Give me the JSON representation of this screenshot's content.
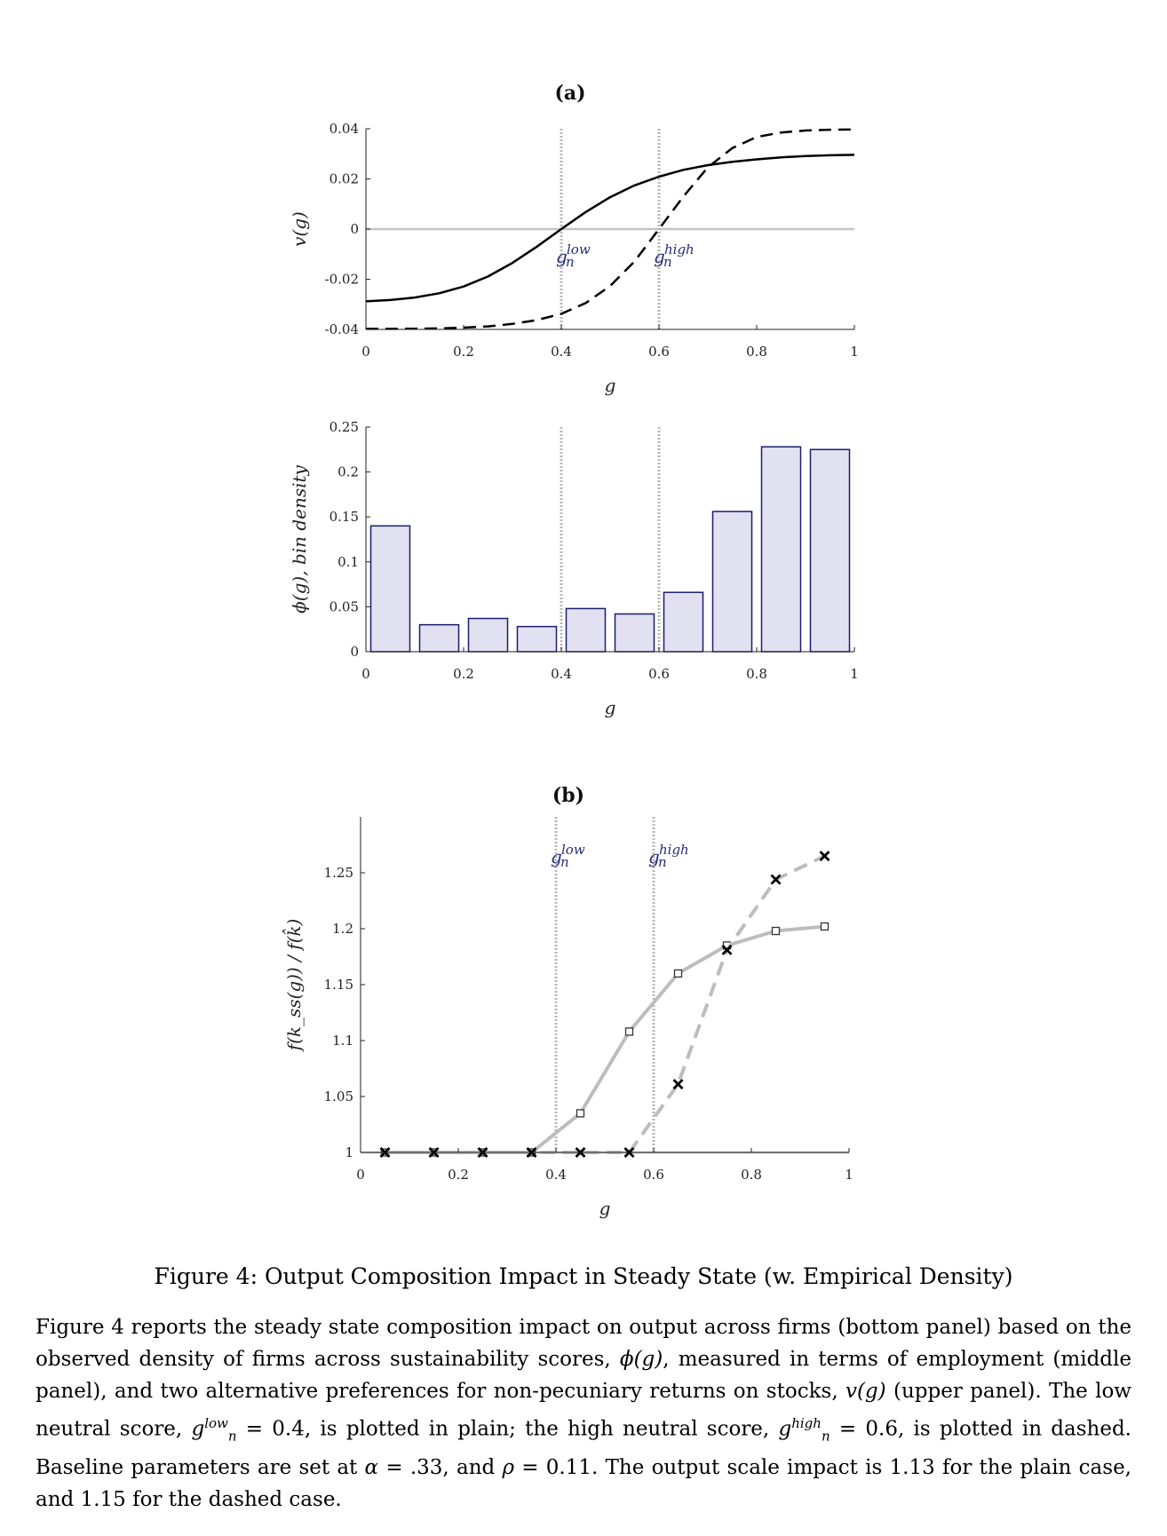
{
  "figure": {
    "panel_a_label": "(a)",
    "panel_b_label": "(b)",
    "ref_low_main": "g",
    "ref_low_sub": "n",
    "ref_low_sup": "low",
    "ref_high_main": "g",
    "ref_high_sub": "n",
    "ref_high_sup": "high"
  },
  "caption": {
    "title": "Figure 4: Output Composition Impact in Steady State (w. Empirical Density)",
    "p1": "Figure 4 reports the steady state composition impact on output across firms (bottom panel) based on the observed density of firms across sustainability scores, ",
    "phi": "ϕ(g)",
    "p2": ", measured in terms of employment (middle panel), and two alternative preferences for non-pecuniary returns on stocks, ",
    "vg": "v(g)",
    "p3": " (upper panel). The low neutral score, ",
    "glow": "g",
    "glow_sup": "low",
    "glow_sub": "n",
    "p4": " = 0.4, is plotted in plain; the high neutral score, ",
    "ghigh": "g",
    "ghigh_sup": "high",
    "ghigh_sub": "n",
    "p5": " = 0.6, is plotted in dashed. Baseline parameters are set at ",
    "alpha": "α",
    "p6": " = .33, and ",
    "rho": "ρ",
    "p7": " = 0.11. The output scale impact is 1.13 for the plain case, and 1.15 for the dashed case."
  },
  "chart_data": [
    {
      "type": "line",
      "panel": "(a)",
      "xlabel": "g",
      "ylabel": "v(g)",
      "xlim": [
        0,
        1
      ],
      "ylim": [
        -0.04,
        0.04
      ],
      "xticks": [
        "0",
        "0.2",
        "0.4",
        "0.6",
        "0.8",
        "1"
      ],
      "yticks": [
        "-0.04",
        "-0.02",
        "0",
        "0.02",
        "0.04"
      ],
      "reference_lines_x": [
        0.4,
        0.6
      ],
      "series": [
        {
          "style": "solid",
          "color": "#000000",
          "x": [
            0,
            0.05,
            0.1,
            0.15,
            0.2,
            0.25,
            0.3,
            0.35,
            0.4,
            0.45,
            0.5,
            0.55,
            0.6,
            0.65,
            0.7,
            0.75,
            0.8,
            0.85,
            0.9,
            0.95,
            1
          ],
          "y": [
            -0.0288,
            -0.0283,
            -0.0273,
            -0.0256,
            -0.0229,
            -0.0189,
            -0.0135,
            -0.007,
            0.0,
            0.0068,
            0.0127,
            0.0174,
            0.0209,
            0.0236,
            0.0255,
            0.0268,
            0.0278,
            0.0286,
            0.0291,
            0.0294,
            0.0296
          ]
        },
        {
          "style": "dashed",
          "color": "#000000",
          "x": [
            0,
            0.05,
            0.1,
            0.15,
            0.2,
            0.25,
            0.3,
            0.35,
            0.4,
            0.45,
            0.5,
            0.55,
            0.6,
            0.65,
            0.7,
            0.75,
            0.8,
            0.85,
            0.9,
            0.95,
            1
          ],
          "y": [
            -0.0398,
            -0.0398,
            -0.0397,
            -0.0396,
            -0.0393,
            -0.0388,
            -0.0378,
            -0.0363,
            -0.0338,
            -0.0295,
            -0.0227,
            -0.0129,
            0.0,
            0.013,
            0.0246,
            0.0323,
            0.0367,
            0.0385,
            0.0393,
            0.0396,
            0.0397
          ]
        }
      ]
    },
    {
      "type": "bar",
      "xlabel": "g",
      "ylabel": "ϕ(g), bin density",
      "xlim": [
        0,
        1
      ],
      "ylim": [
        0,
        0.25
      ],
      "xticks": [
        "0",
        "0.2",
        "0.4",
        "0.6",
        "0.8",
        "1"
      ],
      "yticks": [
        "0",
        "0.05",
        "0.1",
        "0.15",
        "0.2",
        "0.25"
      ],
      "bar_fill": "#e1e1f1",
      "bar_edge": "#1c1c6e",
      "reference_lines_x": [
        0.4,
        0.6
      ],
      "x": [
        0.05,
        0.15,
        0.25,
        0.35,
        0.45,
        0.55,
        0.65,
        0.75,
        0.85,
        0.95
      ],
      "values": [
        0.14,
        0.03,
        0.037,
        0.028,
        0.048,
        0.042,
        0.066,
        0.156,
        0.228,
        0.225
      ]
    },
    {
      "type": "line",
      "panel": "(b)",
      "xlabel": "g",
      "ylabel": "f(k_ss(g)) / f(k̂)",
      "xlim": [
        0,
        1
      ],
      "ylim": [
        1,
        1.3
      ],
      "xticks": [
        "0",
        "0.2",
        "0.4",
        "0.6",
        "0.8",
        "1"
      ],
      "yticks": [
        "1",
        "1.05",
        "1.1",
        "1.15",
        "1.2",
        "1.25"
      ],
      "reference_lines_x": [
        0.4,
        0.6
      ],
      "series": [
        {
          "style": "solid",
          "color": "#bdbdbd",
          "marker": "square",
          "x": [
            0.05,
            0.15,
            0.25,
            0.35,
            0.45,
            0.55,
            0.65,
            0.75,
            0.85,
            0.95
          ],
          "y": [
            1.0,
            1.0,
            1.0,
            1.0,
            1.035,
            1.108,
            1.16,
            1.185,
            1.198,
            1.202
          ]
        },
        {
          "style": "dashed",
          "color": "#bdbdbd",
          "marker": "x",
          "x": [
            0.05,
            0.15,
            0.25,
            0.35,
            0.45,
            0.55,
            0.65,
            0.75,
            0.85,
            0.95
          ],
          "y": [
            1.0,
            1.0,
            1.0,
            1.0,
            1.0,
            1.0,
            1.061,
            1.181,
            1.244,
            1.265
          ]
        }
      ]
    }
  ]
}
